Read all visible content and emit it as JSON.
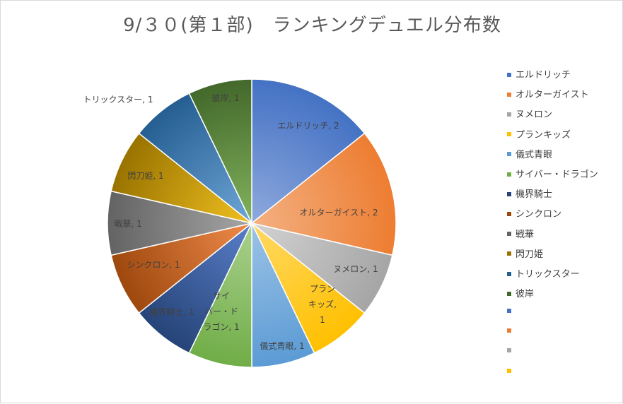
{
  "chart_data": {
    "type": "pie",
    "title": "9/３０(第１部)　ランキングデュエル分布数",
    "categories": [
      "エルドリッチ",
      "オルターガイスト",
      "ヌメロン",
      "プランキッズ",
      "儀式青眼",
      "サイバー・ドラゴン",
      "機界騎士",
      "シンクロン",
      "戦華",
      "閃刀姫",
      "トリックスター",
      "彼岸"
    ],
    "values": [
      2,
      2,
      1,
      1,
      1,
      1,
      1,
      1,
      1,
      1,
      1,
      1
    ],
    "colors": [
      "#4472c4",
      "#ed7d31",
      "#a5a5a5",
      "#ffc000",
      "#5b9bd5",
      "#70ad47",
      "#264478",
      "#9e480e",
      "#636363",
      "#997300",
      "#255e91",
      "#43682b"
    ],
    "light_colors": [
      "#8fa9dd",
      "#f4b183",
      "#d3d3d3",
      "#ffd966",
      "#9dc3e6",
      "#a9d18e",
      "#5a7fc9",
      "#f08b4b",
      "#a6a6a6",
      "#f0c020",
      "#6fa6d8",
      "#82b35c"
    ],
    "data_labels": [
      [
        "エルドリッチ, 2"
      ],
      [
        "オルターガイスト, 2"
      ],
      [
        "ヌメロン, 1"
      ],
      [
        "プラン",
        "キッズ,",
        "1"
      ],
      [
        "儀式青眼, 1"
      ],
      [
        "サイ",
        "バー・ド",
        "ラゴン, 1"
      ],
      [
        "機界騎士, 1"
      ],
      [
        "シンクロン, 1"
      ],
      [
        "戦華, 1"
      ],
      [
        "閃刀姫, 1"
      ],
      [
        "トリックスター, 1"
      ],
      [
        "彼岸, 1"
      ]
    ],
    "legend": {
      "position": "right",
      "entries": [
        "エルドリッチ",
        "オルターガイスト",
        "ヌメロン",
        "プランキッズ",
        "儀式青眼",
        "サイバー・ドラゴン",
        "機界騎士",
        "シンクロン",
        "戦華",
        "閃刀姫",
        "トリックスター",
        "彼岸",
        "",
        "",
        "",
        ""
      ],
      "entry_colors": [
        "#4472c4",
        "#ed7d31",
        "#a5a5a5",
        "#ffc000",
        "#5b9bd5",
        "#70ad47",
        "#264478",
        "#9e480e",
        "#636363",
        "#997300",
        "#255e91",
        "#43682b",
        "#4472c4",
        "#ed7d31",
        "#a5a5a5",
        "#ffc000"
      ]
    }
  }
}
